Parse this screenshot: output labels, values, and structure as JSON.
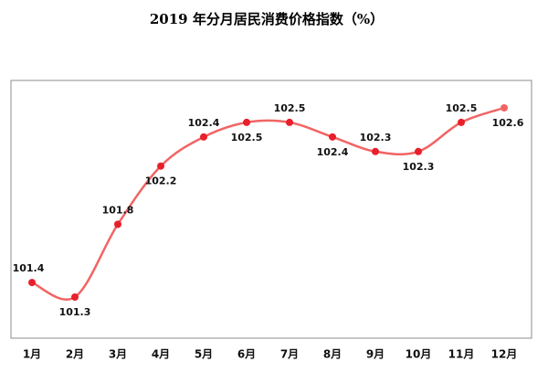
{
  "chart_data": {
    "type": "line",
    "title": "2019 年分月居民消费价格指数（%）",
    "categories": [
      "1月",
      "2月",
      "3月",
      "4月",
      "5月",
      "6月",
      "7月",
      "8月",
      "9月",
      "10月",
      "11月",
      "12月"
    ],
    "values": [
      101.4,
      101.3,
      101.8,
      102.2,
      102.4,
      102.5,
      102.5,
      102.4,
      102.3,
      102.3,
      102.5,
      102.6
    ],
    "color": "#f26464",
    "marker_color": "#e8202a"
  }
}
